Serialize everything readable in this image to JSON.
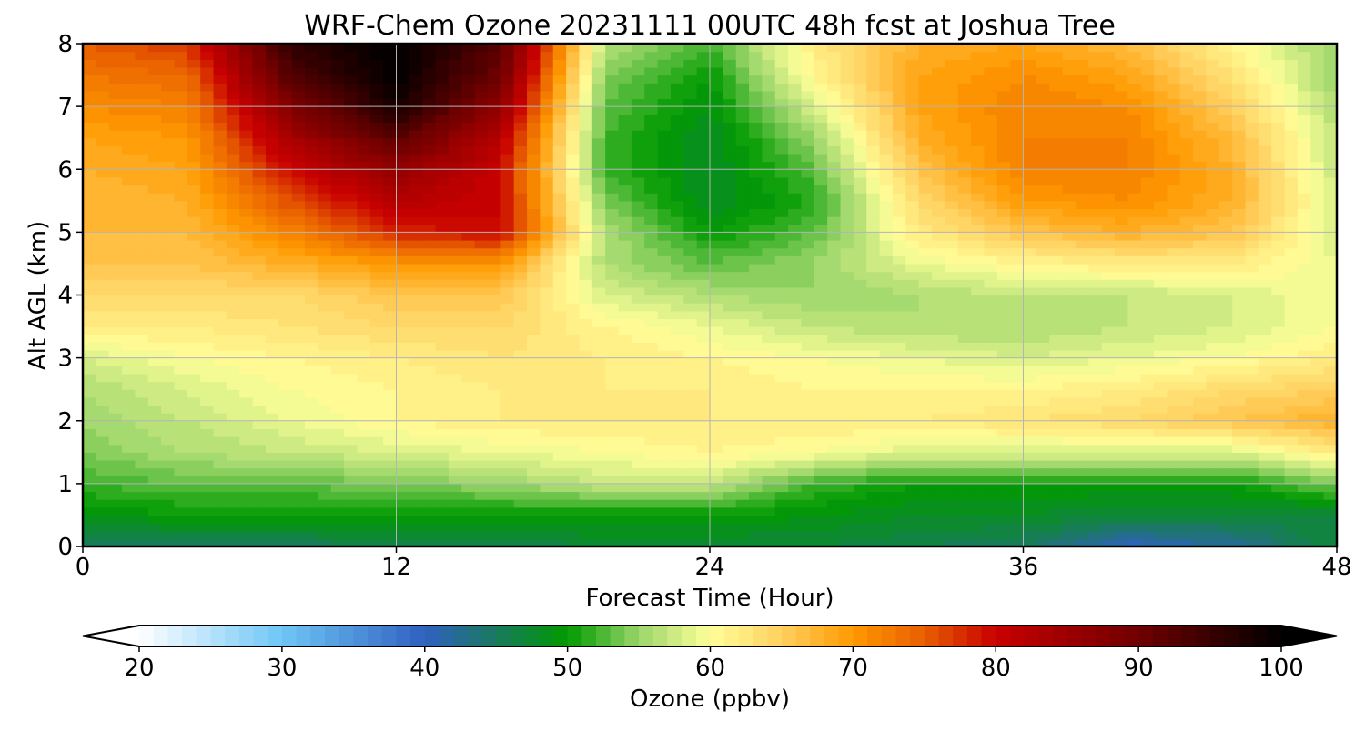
{
  "chart_data": {
    "type": "heatmap",
    "title": "WRF-Chem Ozone  20231111 00UTC 48h fcst at Joshua Tree",
    "xlabel": "Forecast Time (Hour)",
    "ylabel": "Alt AGL (km)",
    "xlim": [
      0,
      48
    ],
    "ylim": [
      0,
      8
    ],
    "xticks": [
      0,
      12,
      24,
      36,
      48
    ],
    "yticks": [
      0,
      1,
      2,
      3,
      4,
      5,
      6,
      7,
      8
    ],
    "grid": true,
    "x": [
      0,
      4,
      8,
      12,
      16,
      20,
      24,
      28,
      32,
      36,
      40,
      44,
      48
    ],
    "y": [
      0,
      0.5,
      1,
      1.5,
      2,
      2.5,
      3,
      3.5,
      4,
      4.5,
      5,
      5.5,
      6,
      6.5,
      7,
      7.5,
      8
    ],
    "z": [
      [
        45,
        45,
        45,
        46,
        46,
        47,
        47,
        47,
        46,
        45,
        40,
        42,
        47
      ],
      [
        49,
        50,
        50,
        50,
        50,
        50,
        50,
        49,
        48,
        48,
        47,
        47,
        47
      ],
      [
        52,
        53,
        53,
        54,
        55,
        57,
        57,
        52,
        50,
        50,
        50,
        50,
        54
      ],
      [
        54,
        56,
        57,
        58,
        59,
        60,
        61,
        60,
        58,
        58,
        58,
        58,
        62
      ],
      [
        55,
        57,
        59,
        61,
        62,
        62,
        62,
        62,
        62,
        63,
        64,
        66,
        68
      ],
      [
        56,
        58,
        60,
        61,
        62,
        62,
        62,
        61,
        61,
        61,
        62,
        64,
        65
      ],
      [
        58,
        60,
        61,
        62,
        63,
        62,
        61,
        60,
        59,
        58,
        59,
        60,
        62
      ],
      [
        62,
        62,
        63,
        64,
        64,
        61,
        59,
        57,
        56,
        56,
        57,
        58,
        60
      ],
      [
        64,
        64,
        64,
        66,
        66,
        58,
        56,
        55,
        56,
        57,
        57,
        58,
        60
      ],
      [
        66,
        66,
        68,
        70,
        70,
        56,
        53,
        55,
        59,
        61,
        62,
        62,
        59
      ],
      [
        67,
        67,
        72,
        78,
        80,
        56,
        50,
        53,
        62,
        66,
        68,
        66,
        58
      ],
      [
        67,
        68,
        76,
        82,
        80,
        54,
        48,
        51,
        64,
        70,
        71,
        68,
        58
      ],
      [
        68,
        69,
        80,
        86,
        80,
        52,
        48,
        53,
        66,
        72,
        72,
        68,
        57
      ],
      [
        69,
        70,
        84,
        92,
        82,
        52,
        48,
        55,
        68,
        72,
        72,
        67,
        57
      ],
      [
        71,
        72,
        88,
        98,
        86,
        53,
        49,
        58,
        69,
        72,
        71,
        65,
        56
      ],
      [
        73,
        74,
        93,
        100,
        90,
        54,
        50,
        61,
        69,
        71,
        69,
        63,
        55
      ],
      [
        75,
        77,
        96,
        100,
        92,
        56,
        52,
        62,
        68,
        69,
        67,
        61,
        55
      ]
    ],
    "colorbar": {
      "label": "Ozone  (ppbv)",
      "min": 20,
      "max": 100,
      "step": 1,
      "ticks": [
        20,
        30,
        40,
        50,
        60,
        70,
        80,
        90,
        100
      ],
      "extend": "both",
      "colors": [
        {
          "v": 20,
          "c": "#ffffff"
        },
        {
          "v": 30,
          "c": "#6ec6f5"
        },
        {
          "v": 40,
          "c": "#3060c0"
        },
        {
          "v": 45,
          "c": "#1a7a5e"
        },
        {
          "v": 50,
          "c": "#009a00"
        },
        {
          "v": 55,
          "c": "#9ad66a"
        },
        {
          "v": 60,
          "c": "#ffff99"
        },
        {
          "v": 65,
          "c": "#ffd060"
        },
        {
          "v": 70,
          "c": "#ff9900"
        },
        {
          "v": 75,
          "c": "#e85e00"
        },
        {
          "v": 80,
          "c": "#c80000"
        },
        {
          "v": 90,
          "c": "#700000"
        },
        {
          "v": 100,
          "c": "#000000"
        }
      ],
      "under_color": "#ffffff",
      "over_color": "#000000"
    },
    "grid_color": "#b4b4b4"
  }
}
